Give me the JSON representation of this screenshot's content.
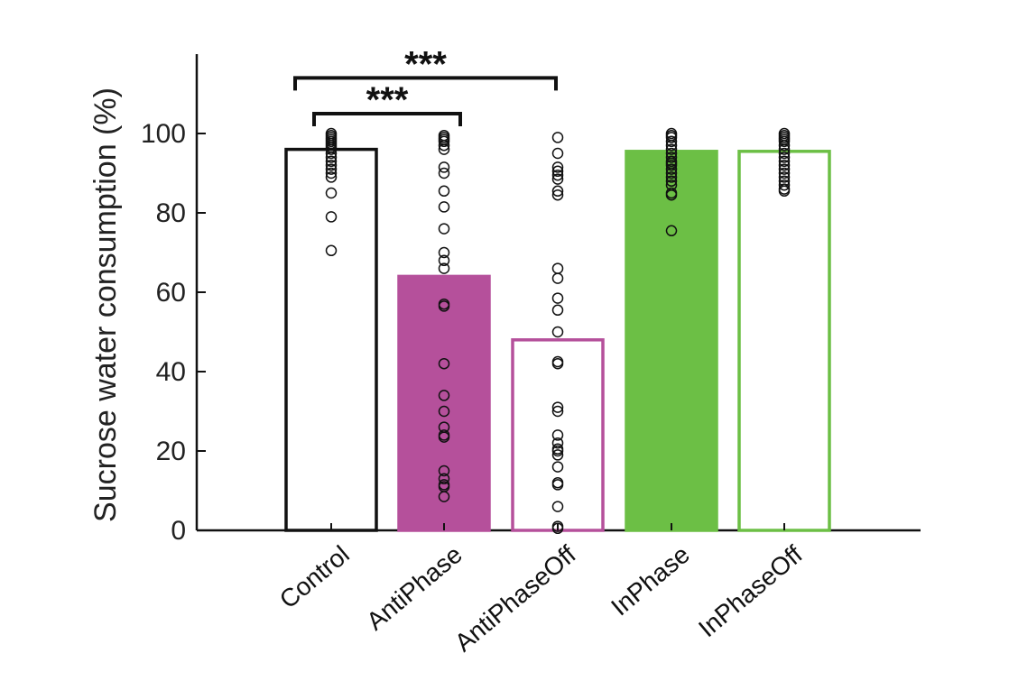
{
  "chart_data": {
    "type": "bar",
    "ylabel": "Sucrose water consumption (%)",
    "xlabel": "",
    "ylim": [
      0,
      120
    ],
    "yticks": [
      0,
      20,
      40,
      60,
      80,
      100
    ],
    "yticks_labels": [
      "0",
      "20",
      "40",
      "60",
      "80",
      "100"
    ],
    "grid": false,
    "categories": [
      "Control",
      "AntiPhase",
      "AntiPhaseOff",
      "InPhase",
      "InPhaseOff"
    ],
    "values": [
      96,
      64,
      48,
      95.5,
      95.5
    ],
    "bar_styles": [
      {
        "fill": "none",
        "stroke": "#111111"
      },
      {
        "fill": "#b5509b",
        "stroke": "#b5509b"
      },
      {
        "fill": "none",
        "stroke": "#b5509b"
      },
      {
        "fill": "#6cbf45",
        "stroke": "#6cbf45"
      },
      {
        "fill": "none",
        "stroke": "#6cbf45"
      }
    ],
    "points": [
      [
        100,
        99.5,
        99,
        98.5,
        98,
        97.5,
        97,
        96.5,
        96,
        95,
        94,
        93,
        92,
        91,
        90,
        89,
        85,
        79,
        70.5
      ],
      [
        99.5,
        99,
        98.5,
        98,
        97,
        96,
        91.5,
        90,
        85.5,
        81.5,
        76,
        70,
        68,
        66,
        57,
        56.5,
        42,
        34,
        30,
        26,
        24,
        23.5,
        15,
        13,
        11.5,
        11,
        8.5
      ],
      [
        99,
        95,
        91.5,
        90.5,
        89.5,
        88.5,
        85.5,
        84.5,
        66,
        63.5,
        58.5,
        55.5,
        50,
        42.5,
        42,
        31,
        30,
        24,
        22,
        20.5,
        20,
        19,
        16,
        12,
        11.5,
        6,
        1,
        0.5
      ],
      [
        100,
        99.5,
        99,
        98,
        97,
        96,
        95,
        94,
        93,
        92.5,
        92,
        91,
        90,
        89,
        88,
        87,
        85,
        84.5,
        75.5
      ],
      [
        100,
        99.5,
        99,
        98.5,
        98,
        97,
        96,
        95,
        94,
        93,
        92,
        91,
        90,
        89,
        88,
        87,
        86,
        85.5
      ]
    ],
    "significance": [
      {
        "from": 0,
        "to": 2,
        "label": "***",
        "y": 114
      },
      {
        "from": 0,
        "to": 1,
        "label": "***",
        "y": 105
      }
    ]
  }
}
